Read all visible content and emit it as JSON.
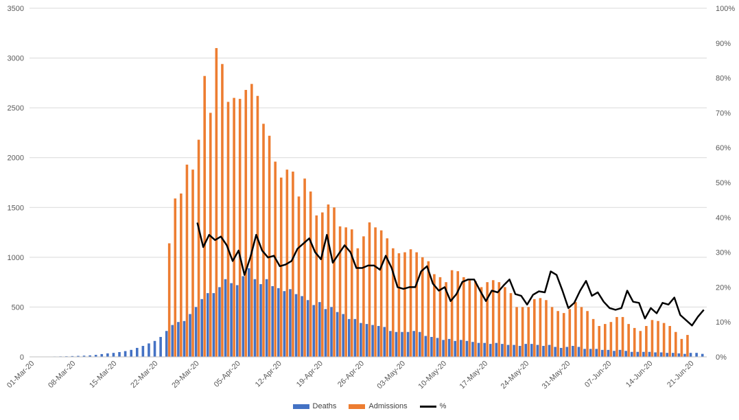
{
  "chart_data": {
    "type": "bar",
    "title": "",
    "xlabel": "",
    "ylabel": "",
    "ylim": [
      0,
      3500
    ],
    "y2lim": [
      0,
      1
    ],
    "grid": true,
    "legend_position": "bottom",
    "yticks": [
      "0",
      "500",
      "1000",
      "1500",
      "2000",
      "2500",
      "3000",
      "3500"
    ],
    "y2ticks": [
      "0%",
      "10%",
      "20%",
      "30%",
      "40%",
      "50%",
      "60%",
      "70%",
      "80%",
      "90%",
      "100%"
    ],
    "xtick_labels": [
      "01-Mar-20",
      "08-Mar-20",
      "15-Mar-20",
      "22-Mar-20",
      "29-Mar-20",
      "05-Apr-20",
      "12-Apr-20",
      "19-Apr-20",
      "26-Apr-20",
      "03-May-20",
      "10-May-20",
      "17-May-20",
      "24-May-20",
      "31-May-20",
      "07-Jun-20",
      "14-Jun-20",
      "21-Jun-20"
    ],
    "x_start": "01-Mar-20",
    "x_end": "25-Jun-20",
    "series": [
      {
        "name": "Deaths",
        "kind": "bar",
        "color": "#4472C4",
        "values": [
          2,
          2,
          2,
          3,
          4,
          5,
          6,
          8,
          10,
          12,
          15,
          20,
          28,
          35,
          40,
          48,
          58,
          70,
          90,
          110,
          135,
          160,
          200,
          260,
          320,
          350,
          360,
          430,
          500,
          580,
          640,
          640,
          700,
          780,
          740,
          720,
          810,
          890,
          780,
          730,
          780,
          710,
          690,
          660,
          680,
          630,
          610,
          570,
          520,
          550,
          480,
          500,
          450,
          430,
          380,
          380,
          340,
          330,
          320,
          310,
          300,
          260,
          250,
          250,
          250,
          260,
          250,
          210,
          200,
          190,
          170,
          180,
          160,
          170,
          160,
          150,
          140,
          140,
          130,
          140,
          130,
          120,
          120,
          110,
          130,
          130,
          120,
          110,
          120,
          100,
          90,
          100,
          110,
          100,
          80,
          80,
          80,
          70,
          70,
          60,
          70,
          60,
          50,
          50,
          50,
          50,
          45,
          45,
          40,
          40,
          35,
          30,
          40,
          40,
          30
        ]
      },
      {
        "name": "Admissions",
        "kind": "bar",
        "color": "#ED7D31",
        "values": [
          null,
          null,
          null,
          null,
          null,
          null,
          null,
          null,
          null,
          null,
          null,
          null,
          null,
          null,
          null,
          null,
          null,
          null,
          null,
          null,
          null,
          null,
          null,
          1140,
          1590,
          1640,
          1930,
          1880,
          2180,
          2820,
          2450,
          3100,
          2940,
          2560,
          2600,
          2590,
          2680,
          2740,
          2620,
          2340,
          2220,
          1960,
          1800,
          1880,
          1860,
          1610,
          1790,
          1660,
          1420,
          1450,
          1530,
          1500,
          1310,
          1300,
          1280,
          1090,
          1210,
          1350,
          1300,
          1270,
          1190,
          1090,
          1040,
          1050,
          1080,
          1050,
          1000,
          960,
          830,
          800,
          750,
          870,
          860,
          800,
          780,
          760,
          700,
          750,
          770,
          750,
          700,
          640,
          500,
          500,
          500,
          580,
          590,
          570,
          500,
          460,
          440,
          480,
          550,
          500,
          460,
          380,
          310,
          330,
          350,
          400,
          400,
          330,
          290,
          260,
          310,
          370,
          360,
          340,
          310,
          250,
          180,
          220,
          null,
          null,
          null
        ]
      },
      {
        "name": "%",
        "kind": "line",
        "color": "#000000",
        "values": [
          null,
          null,
          null,
          null,
          null,
          null,
          null,
          null,
          null,
          null,
          null,
          null,
          null,
          null,
          null,
          null,
          null,
          null,
          null,
          null,
          null,
          null,
          null,
          null,
          null,
          null,
          null,
          null,
          0.385,
          0.315,
          0.35,
          0.335,
          0.345,
          0.32,
          0.275,
          0.305,
          0.235,
          0.285,
          0.35,
          0.305,
          0.285,
          0.29,
          0.26,
          0.265,
          0.275,
          0.31,
          0.325,
          0.34,
          0.3,
          0.28,
          0.35,
          0.27,
          0.295,
          0.32,
          0.3,
          0.255,
          0.255,
          0.262,
          0.262,
          0.25,
          0.29,
          0.255,
          0.2,
          0.195,
          0.2,
          0.2,
          0.245,
          0.26,
          0.21,
          0.19,
          0.2,
          0.16,
          0.18,
          0.215,
          0.222,
          0.222,
          0.19,
          0.16,
          0.19,
          0.185,
          0.205,
          0.222,
          0.18,
          0.175,
          0.15,
          0.178,
          0.188,
          0.185,
          0.245,
          0.235,
          0.19,
          0.14,
          0.155,
          0.19,
          0.218,
          0.175,
          0.185,
          0.158,
          0.14,
          0.135,
          0.14,
          0.19,
          0.158,
          0.155,
          0.11,
          0.14,
          0.125,
          0.155,
          0.15,
          0.17,
          0.12,
          0.105,
          0.09,
          0.115,
          0.135
        ]
      }
    ]
  },
  "legend": {
    "deaths_label": "Deaths",
    "admissions_label": "Admissions",
    "percent_label": "%"
  }
}
